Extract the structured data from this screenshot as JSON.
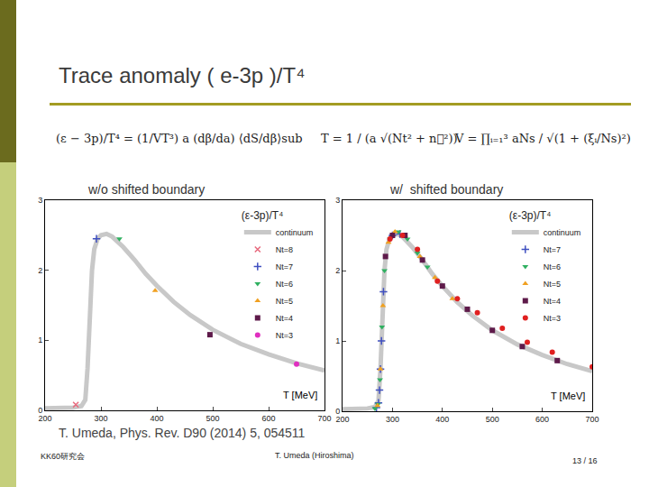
{
  "slide": {
    "title": "Trace anomaly ( e-3p )/T⁴",
    "formulas": [
      "(ε − 3p)/T⁴ = (1/VT³) a (dβ/da) ⟨dS/dβ⟩sub",
      "T = 1 / (a √(Nt² + n⃗²))",
      "V = ∏ᵢ₌₁³ aNs / √(1 + (ξᵢ/Ns)²)"
    ],
    "citation": "T. Umeda, Phys. Rev. D90 (2014) 5, 054511",
    "conference": "KK60研究会",
    "author": "T. Umeda (Hiroshima)",
    "page": "13 / 16"
  },
  "chart_data": [
    {
      "type": "scatter",
      "title": "w/o shifted boundary",
      "x_label": "T [MeV]",
      "legend_title": "(ε-3p)/T⁴",
      "xlim": [
        200,
        700
      ],
      "ylim": [
        0,
        3
      ],
      "xticks": [
        200,
        300,
        400,
        500,
        600,
        700
      ],
      "yticks": [
        0,
        1,
        2,
        3
      ],
      "legend": "upper right",
      "series": [
        {
          "name": "continuum",
          "type": "line",
          "line_style": "solid",
          "color": "#c8c8c8",
          "x": [
            200,
            250,
            265,
            272,
            276,
            280,
            284,
            288,
            294,
            300,
            310,
            320,
            340,
            360,
            380,
            400,
            430,
            460,
            500,
            550,
            600,
            650,
            700
          ],
          "values": [
            0.03,
            0.04,
            0.06,
            0.15,
            0.6,
            1.4,
            2.0,
            2.3,
            2.45,
            2.5,
            2.52,
            2.48,
            2.33,
            2.15,
            1.95,
            1.78,
            1.55,
            1.36,
            1.15,
            0.95,
            0.8,
            0.67,
            0.57
          ]
        },
        {
          "name": "Nt=8",
          "type": "scatter",
          "marker": "x",
          "color": "#e86a7e",
          "x": [
            255
          ],
          "values": [
            0.08
          ]
        },
        {
          "name": "Nt=7",
          "type": "scatter",
          "marker": "cross",
          "color": "#3f4fc0",
          "x": [
            292
          ],
          "values": [
            2.45
          ]
        },
        {
          "name": "Nt=6",
          "type": "scatter",
          "marker": "triangle-down",
          "color": "#2fb060",
          "x": [
            333
          ],
          "values": [
            2.45
          ]
        },
        {
          "name": "Nt=5",
          "type": "scatter",
          "marker": "triangle-up",
          "color": "#f0a020",
          "x": [
            397
          ],
          "values": [
            1.71
          ]
        },
        {
          "name": "Nt=4",
          "type": "scatter",
          "marker": "square",
          "color": "#5e1a4a",
          "x": [
            495
          ],
          "values": [
            1.08
          ]
        },
        {
          "name": "Nt=3",
          "type": "scatter",
          "marker": "circle",
          "color": "#e030c0",
          "x": [
            650
          ],
          "values": [
            0.66
          ]
        }
      ]
    },
    {
      "type": "scatter",
      "title": "w/  shifted boundary",
      "x_label": "T [MeV]",
      "legend_title": "(ε-3p)/T⁴",
      "xlim": [
        200,
        700
      ],
      "ylim": [
        0,
        3
      ],
      "xticks": [
        200,
        300,
        400,
        500,
        600,
        700
      ],
      "yticks": [
        0,
        1,
        2,
        3
      ],
      "legend": "upper right",
      "series": [
        {
          "name": "continuum",
          "type": "line",
          "line_style": "solid",
          "color": "#c8c8c8",
          "x": [
            200,
            250,
            265,
            272,
            276,
            280,
            284,
            288,
            294,
            300,
            310,
            320,
            340,
            360,
            380,
            400,
            430,
            460,
            500,
            550,
            600,
            650,
            700
          ],
          "values": [
            0.03,
            0.04,
            0.06,
            0.15,
            0.6,
            1.4,
            2.0,
            2.3,
            2.45,
            2.5,
            2.52,
            2.48,
            2.33,
            2.15,
            1.95,
            1.78,
            1.55,
            1.36,
            1.15,
            0.95,
            0.8,
            0.67,
            0.57
          ]
        },
        {
          "name": "Nt=7",
          "type": "scatter",
          "marker": "cross",
          "color": "#3f4fc0",
          "x": [
            268,
            272,
            274,
            276,
            278,
            282,
            300,
            315
          ],
          "values": [
            0.05,
            0.12,
            0.3,
            0.6,
            1.0,
            1.7,
            2.5,
            2.52
          ]
        },
        {
          "name": "Nt=6",
          "type": "scatter",
          "marker": "triangle-down",
          "color": "#2fb060",
          "x": [
            265,
            271,
            275,
            279,
            284,
            295,
            312,
            330,
            350,
            370
          ],
          "values": [
            0.04,
            0.1,
            0.45,
            1.2,
            2.0,
            2.45,
            2.55,
            2.45,
            2.25,
            2.05
          ]
        },
        {
          "name": "Nt=5",
          "type": "scatter",
          "marker": "triangle-up",
          "color": "#f0a020",
          "x": [
            270,
            276,
            281,
            292,
            305,
            325,
            355,
            385,
            420
          ],
          "values": [
            0.08,
            0.6,
            1.5,
            2.4,
            2.55,
            2.5,
            2.2,
            1.9,
            1.6
          ]
        },
        {
          "name": "Nt=4",
          "type": "scatter",
          "marker": "square",
          "color": "#5e1a4a",
          "x": [
            286,
            300,
            325,
            360,
            400,
            450,
            500,
            560,
            630
          ],
          "values": [
            2.2,
            2.5,
            2.5,
            2.15,
            1.78,
            1.45,
            1.15,
            0.92,
            0.72
          ]
        },
        {
          "name": "Nt=3",
          "type": "scatter",
          "marker": "circle",
          "color": "#e02020",
          "x": [
            295,
            320,
            350,
            390,
            430,
            470,
            520,
            570,
            620,
            700
          ],
          "values": [
            2.45,
            2.5,
            2.3,
            1.85,
            1.6,
            1.4,
            1.18,
            0.98,
            0.84,
            0.63
          ]
        }
      ]
    }
  ]
}
